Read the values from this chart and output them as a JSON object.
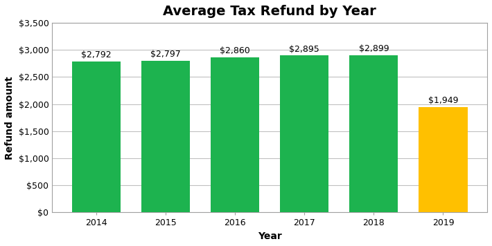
{
  "title": "Average Tax Refund by Year",
  "xlabel": "Year",
  "ylabel": "Refund amount",
  "categories": [
    "2014",
    "2015",
    "2016",
    "2017",
    "2018",
    "2019"
  ],
  "values": [
    2792,
    2797,
    2860,
    2895,
    2899,
    1949
  ],
  "bar_colors": [
    "#1db34f",
    "#1db34f",
    "#1db34f",
    "#1db34f",
    "#1db34f",
    "#FFC000"
  ],
  "labels": [
    "$2,792",
    "$2,797",
    "$2,860",
    "$2,895",
    "$2,899",
    "$1,949"
  ],
  "ylim": [
    0,
    3500
  ],
  "yticks": [
    0,
    500,
    1000,
    1500,
    2000,
    2500,
    3000,
    3500
  ],
  "ytick_labels": [
    "$0",
    "$500",
    "$1,000",
    "$1,500",
    "$2,000",
    "$2,500",
    "$3,000",
    "$3,500"
  ],
  "background_color": "#ffffff",
  "grid_color": "#c0c0c0",
  "spine_color": "#a0a0a0",
  "title_fontsize": 14,
  "label_fontsize": 10,
  "tick_fontsize": 9,
  "bar_label_fontsize": 9,
  "bar_width": 0.7
}
